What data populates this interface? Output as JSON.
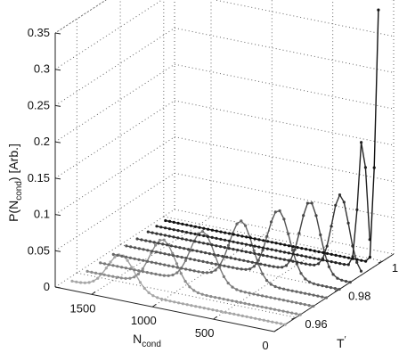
{
  "chart_data": {
    "type": "line",
    "projection": "3d",
    "zlabel": "P(N_cond)  [Arb.]",
    "xlabel": "N_cond",
    "ylabel": "T'",
    "x_ticks": [
      "1500",
      "1000",
      "500",
      "0"
    ],
    "y_ticks": [
      "0.96",
      "0.98",
      "1"
    ],
    "z_ticks": [
      "0",
      "0.05",
      "0.1",
      "0.15",
      "0.2",
      "0.25",
      "0.3",
      "0.35"
    ],
    "xlim": [
      0,
      1800
    ],
    "ylim": [
      0.95,
      1.005
    ],
    "zlim": [
      0,
      0.35
    ],
    "grid": true,
    "series": [
      {
        "T": 0.955,
        "color": "#a6a6a6",
        "peak_N": 1350,
        "peak_P": 0.05,
        "width": 110,
        "tail": 0
      },
      {
        "T": 0.962,
        "color": "#8c8c8c",
        "peak_N": 1130,
        "peak_P": 0.065,
        "width": 105,
        "tail": 0
      },
      {
        "T": 0.968,
        "color": "#7a7a7a",
        "peak_N": 910,
        "peak_P": 0.072,
        "width": 100,
        "tail": 0
      },
      {
        "T": 0.974,
        "color": "#666666",
        "peak_N": 700,
        "peak_P": 0.082,
        "width": 95,
        "tail": 0
      },
      {
        "T": 0.98,
        "color": "#555555",
        "peak_N": 500,
        "peak_P": 0.092,
        "width": 90,
        "tail": 0
      },
      {
        "T": 0.985,
        "color": "#444444",
        "peak_N": 330,
        "peak_P": 0.1,
        "width": 80,
        "tail": 0
      },
      {
        "T": 0.99,
        "color": "#333333",
        "peak_N": 170,
        "peak_P": 0.105,
        "width": 70,
        "tail": 0
      },
      {
        "T": 0.994,
        "color": "#222222",
        "peak_N": 60,
        "peak_P": 0.18,
        "width": 35,
        "tail": 0
      },
      {
        "T": 0.998,
        "color": "#111111",
        "peak_N": 0,
        "peak_P": 0.35,
        "width": 25,
        "tail": 0
      }
    ]
  }
}
